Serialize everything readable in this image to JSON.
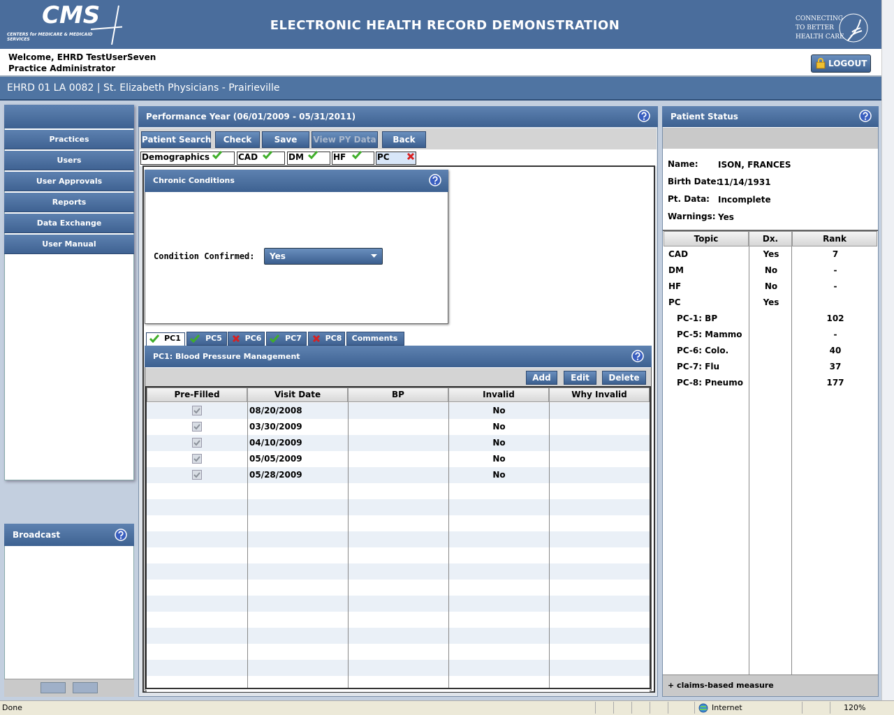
{
  "header": {
    "logo": "CMS",
    "logo_sub": "CENTERS for MEDICARE & MEDICAID SERVICES",
    "title": "ELECTRONIC HEALTH RECORD DEMONSTRATION",
    "tagline": [
      "CONNECTING",
      "TO BETTER",
      "HEALTH CARE"
    ]
  },
  "user": {
    "welcome": "Welcome, EHRD TestUserSeven",
    "role": "Practice Administrator",
    "logout": "LOGOUT"
  },
  "practice": "EHRD 01 LA 0082 | St. Elizabeth Physicians - Prairieville",
  "nav": [
    "Practices",
    "Users",
    "User Approvals",
    "Reports",
    "Data Exchange",
    "User Manual"
  ],
  "broadcast": {
    "title": "Broadcast"
  },
  "main": {
    "title": "Performance Year (06/01/2009 - 05/31/2011)",
    "toolbar": [
      {
        "label": "Patient Search"
      },
      {
        "label": "Check"
      },
      {
        "label": "Save"
      },
      {
        "label": "View PY Data",
        "disabled": true
      },
      {
        "label": "Back"
      }
    ],
    "tabs": [
      {
        "label": "Demographics",
        "status": "ok"
      },
      {
        "label": "CAD",
        "status": "ok"
      },
      {
        "label": "DM",
        "status": "ok"
      },
      {
        "label": "HF",
        "status": "ok"
      },
      {
        "label": "PC",
        "status": "error"
      }
    ]
  },
  "chronic": {
    "title": "Chronic Conditions",
    "label": "Condition Confirmed:",
    "value": "Yes"
  },
  "subtabs": [
    {
      "label": "PC1",
      "status": "ok"
    },
    {
      "label": "PC5",
      "status": "ok"
    },
    {
      "label": "PC6",
      "status": "error"
    },
    {
      "label": "PC7",
      "status": "ok"
    },
    {
      "label": "PC8",
      "status": "error"
    },
    {
      "label": "Comments"
    }
  ],
  "measure": {
    "title": "PC1: Blood Pressure Management",
    "actions": [
      "Add",
      "Edit",
      "Delete"
    ],
    "columns": [
      "Pre-Filled",
      "Visit Date",
      "BP",
      "Invalid",
      "Why Invalid"
    ],
    "rows": [
      {
        "prefilled": true,
        "visit_date": "08/20/2008",
        "invalid": "No"
      },
      {
        "prefilled": true,
        "visit_date": "03/30/2009",
        "invalid": "No"
      },
      {
        "prefilled": true,
        "visit_date": "04/10/2009",
        "invalid": "No"
      },
      {
        "prefilled": true,
        "visit_date": "05/05/2009",
        "invalid": "No"
      },
      {
        "prefilled": true,
        "visit_date": "05/28/2009",
        "invalid": "No"
      }
    ]
  },
  "status": {
    "title": "Patient Status",
    "fields": [
      {
        "label": "Name:",
        "value": "ISON, FRANCES"
      },
      {
        "label": "Birth Date:",
        "value": "11/14/1931"
      },
      {
        "label": "Pt. Data:",
        "value": "Incomplete"
      },
      {
        "label": "Warnings:",
        "value": "Yes"
      }
    ],
    "columns": [
      "Topic",
      "Dx.",
      "Rank"
    ],
    "rows": [
      {
        "topic": "CAD",
        "dx": "Yes",
        "rank": "7"
      },
      {
        "topic": "DM",
        "dx": "No",
        "rank": "-"
      },
      {
        "topic": "HF",
        "dx": "No",
        "rank": "-"
      },
      {
        "topic": "PC",
        "dx": "Yes"
      },
      {
        "topic": "PC-1: BP",
        "rank": "102",
        "indent": true
      },
      {
        "topic": "PC-5: Mammo",
        "rank": "-",
        "indent": true
      },
      {
        "topic": "PC-6: Colo.",
        "rank": "40",
        "indent": true
      },
      {
        "topic": "PC-7: Flu",
        "rank": "37",
        "indent": true
      },
      {
        "topic": "PC-8: Pneumo",
        "rank": "177",
        "indent": true
      }
    ],
    "footnote": "+ claims-based measure"
  },
  "statusbar": {
    "text": "Done",
    "zone": "Internet",
    "zoom": "120%"
  }
}
